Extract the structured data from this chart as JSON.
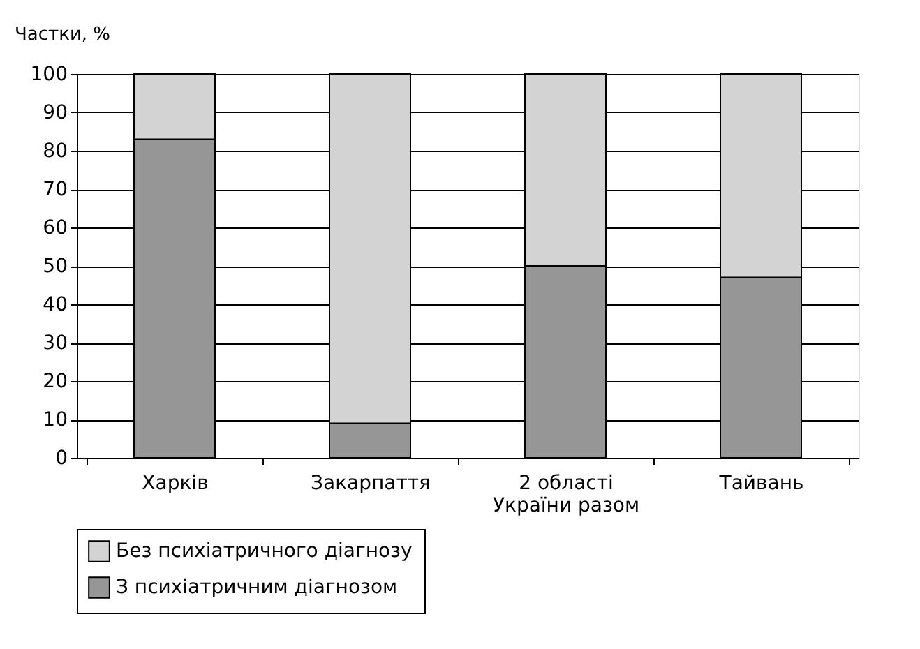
{
  "chart_data": {
    "type": "bar",
    "stacked": true,
    "ylabel": "Частки, %",
    "categories": [
      "Харків",
      "Закарпаття",
      "2 області\nУкраїни разом",
      "Тайвань"
    ],
    "series": [
      {
        "name": "З психіатричним діагнозом",
        "color": "#969696",
        "values": [
          83,
          9,
          50,
          47
        ]
      },
      {
        "name": "Без психіатричного діагнозу",
        "color": "#d3d3d3",
        "values": [
          17,
          91,
          50,
          53
        ]
      }
    ],
    "ylim": [
      0,
      100
    ],
    "yticks": [
      0,
      10,
      20,
      30,
      40,
      50,
      60,
      70,
      80,
      90,
      100
    ],
    "grid": "y",
    "legend": "bottom"
  }
}
